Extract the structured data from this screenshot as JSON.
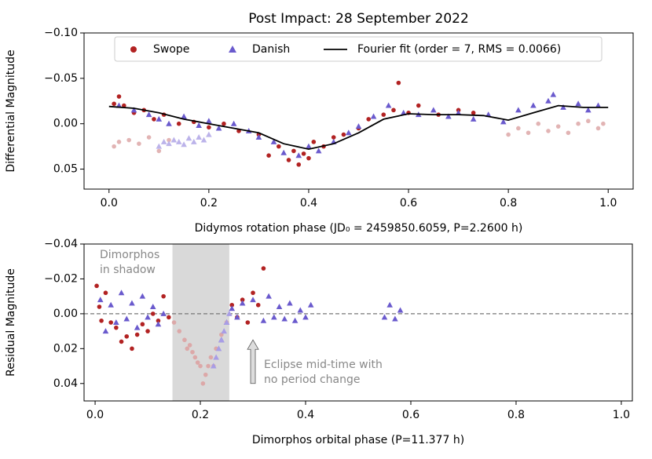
{
  "chart_data": [
    {
      "type": "scatter",
      "title": "Post Impact: 28 September 2022",
      "xlabel": "Didymos rotation phase (JD₀ = 2459850.6059,   P=2.2600 h)",
      "ylabel": "Differential Magnitude",
      "xlim": [
        -0.05,
        1.05
      ],
      "ylim": [
        -0.1,
        0.072
      ],
      "y_inverted": true,
      "xticks": [
        {
          "value": 0,
          "label": "0.0"
        },
        0.2,
        0.4,
        0.6,
        0.8,
        {
          "value": 1,
          "label": "1.0"
        }
      ],
      "yticks": [
        {
          "value": -0.1,
          "label": "−0.10"
        },
        {
          "value": -0.05,
          "label": "−0.05"
        },
        {
          "value": 0,
          "label": "0.00"
        },
        {
          "value": 0.05,
          "label": "0.05"
        }
      ],
      "legend": "upper center",
      "series": [
        {
          "name": "Swope",
          "color": "#b22222",
          "marker": "o",
          "x": [
            0.01,
            0.02,
            0.03,
            0.05,
            0.07,
            0.09,
            0.11,
            0.14,
            0.17,
            0.2,
            0.23,
            0.26,
            0.3,
            0.32,
            0.34,
            0.36,
            0.37,
            0.38,
            0.39,
            0.4,
            0.41,
            0.43,
            0.45,
            0.47,
            0.5,
            0.52,
            0.55,
            0.57,
            0.58,
            0.6,
            0.62,
            0.66,
            0.7,
            0.73
          ],
          "values": [
            -0.022,
            -0.03,
            -0.02,
            -0.012,
            -0.015,
            -0.005,
            -0.01,
            0.0,
            -0.002,
            0.004,
            0.0,
            0.008,
            0.012,
            0.035,
            0.025,
            0.04,
            0.03,
            0.045,
            0.033,
            0.038,
            0.02,
            0.025,
            0.015,
            0.012,
            0.005,
            -0.005,
            -0.01,
            -0.015,
            -0.045,
            -0.012,
            -0.02,
            -0.01,
            -0.015,
            -0.012
          ]
        },
        {
          "name": "Danish",
          "color": "#6a5acd",
          "marker": "^",
          "x": [
            0.02,
            0.05,
            0.08,
            0.1,
            0.12,
            0.15,
            0.18,
            0.2,
            0.22,
            0.25,
            0.28,
            0.3,
            0.33,
            0.35,
            0.38,
            0.4,
            0.42,
            0.45,
            0.48,
            0.5,
            0.53,
            0.56,
            0.59,
            0.62,
            0.65,
            0.68,
            0.7,
            0.73,
            0.76,
            0.79,
            0.82,
            0.85,
            0.88,
            0.89,
            0.91,
            0.94,
            0.96,
            0.98
          ],
          "values": [
            -0.02,
            -0.015,
            -0.01,
            -0.005,
            0.0,
            -0.008,
            0.002,
            -0.003,
            0.005,
            0.0,
            0.008,
            0.015,
            0.02,
            0.032,
            0.035,
            0.025,
            0.03,
            0.02,
            0.01,
            0.003,
            -0.008,
            -0.02,
            -0.012,
            -0.01,
            -0.015,
            -0.008,
            -0.012,
            -0.005,
            -0.01,
            -0.002,
            -0.015,
            -0.02,
            -0.025,
            -0.032,
            -0.018,
            -0.022,
            -0.015,
            -0.02
          ]
        },
        {
          "color": "#e2b4b4",
          "marker": "o",
          "x": [
            0.01,
            0.02,
            0.04,
            0.06,
            0.08,
            0.1,
            0.12,
            0.8,
            0.82,
            0.84,
            0.86,
            0.88,
            0.9,
            0.92,
            0.94,
            0.96,
            0.98,
            0.99
          ],
          "values": [
            0.025,
            0.02,
            0.018,
            0.022,
            0.015,
            0.03,
            0.018,
            0.012,
            0.005,
            0.01,
            0.0,
            0.008,
            0.003,
            0.01,
            0.0,
            -0.003,
            0.005,
            0.0
          ]
        },
        {
          "color": "#bcb3ea",
          "marker": "^",
          "x": [
            0.1,
            0.11,
            0.12,
            0.13,
            0.14,
            0.15,
            0.16,
            0.17,
            0.18,
            0.19,
            0.2
          ],
          "values": [
            0.025,
            0.02,
            0.022,
            0.018,
            0.02,
            0.023,
            0.016,
            0.02,
            0.015,
            0.018,
            0.012
          ]
        },
        {
          "name": "Fourier fit (order = 7, RMS = 0.0066)",
          "color": "#000000",
          "marker": "line",
          "x": [
            0,
            0.05,
            0.1,
            0.15,
            0.2,
            0.25,
            0.3,
            0.35,
            0.4,
            0.45,
            0.5,
            0.55,
            0.6,
            0.65,
            0.7,
            0.75,
            0.8,
            0.85,
            0.9,
            0.95,
            1
          ],
          "values": [
            -0.019,
            -0.017,
            -0.012,
            -0.005,
            0.0,
            0.005,
            0.01,
            0.022,
            0.028,
            0.022,
            0.01,
            -0.005,
            -0.011,
            -0.01,
            -0.01,
            -0.009,
            -0.004,
            -0.012,
            -0.02,
            -0.018,
            -0.018
          ]
        }
      ]
    },
    {
      "type": "scatter",
      "xlabel": "Dimorphos orbital phase (P=11.377 h)",
      "ylabel": "Residual Magnitude",
      "xlim": [
        -0.021,
        1.021
      ],
      "ylim": [
        -0.04,
        0.05
      ],
      "y_inverted": true,
      "xticks": [
        {
          "value": 0,
          "label": "0.0"
        },
        0.2,
        0.4,
        0.6,
        0.8,
        {
          "value": 1,
          "label": "1.0"
        }
      ],
      "yticks": [
        {
          "value": -0.04,
          "label": "−0.04"
        },
        {
          "value": -0.02,
          "label": "−0.02"
        },
        {
          "value": 0,
          "label": "0.00"
        },
        0.02,
        0.04
      ],
      "hline": 0,
      "shade": [
        0.147,
        0.255
      ],
      "annotations": [
        {
          "text": [
            "Dimorphos",
            "in shadow"
          ]
        },
        {
          "text": [
            "Eclipse mid-time with",
            "no period change"
          ],
          "arrow_x": 0.3,
          "arrow_y": [
            0.04,
            0.015
          ]
        }
      ],
      "series": [
        {
          "color": "#b22222",
          "marker": "o",
          "x": [
            0.003,
            0.008,
            0.012,
            0.02,
            0.03,
            0.04,
            0.05,
            0.06,
            0.07,
            0.08,
            0.09,
            0.1,
            0.11,
            0.12,
            0.13,
            0.14,
            0.26,
            0.27,
            0.28,
            0.29,
            0.3,
            0.31,
            0.32
          ],
          "values": [
            -0.016,
            -0.004,
            0.004,
            -0.012,
            0.005,
            0.008,
            0.016,
            0.013,
            0.02,
            0.012,
            0.006,
            0.01,
            0.0,
            0.004,
            -0.01,
            0.002,
            -0.005,
            0.002,
            -0.008,
            0.005,
            -0.012,
            -0.005,
            -0.026
          ]
        },
        {
          "color": "#6a5acd",
          "marker": "^",
          "x": [
            0.01,
            0.02,
            0.03,
            0.04,
            0.05,
            0.06,
            0.07,
            0.08,
            0.09,
            0.1,
            0.11,
            0.12,
            0.13,
            0.24,
            0.25,
            0.26,
            0.27,
            0.28,
            0.3,
            0.32,
            0.33,
            0.34,
            0.35,
            0.36,
            0.37,
            0.38,
            0.39,
            0.4,
            0.41,
            0.55,
            0.56,
            0.57,
            0.58
          ],
          "values": [
            -0.008,
            0.01,
            -0.005,
            0.005,
            -0.012,
            0.003,
            -0.006,
            0.008,
            -0.01,
            0.002,
            -0.004,
            0.006,
            0.0,
            0.015,
            0.005,
            -0.003,
            0.002,
            -0.006,
            -0.008,
            0.004,
            -0.01,
            0.002,
            -0.004,
            0.003,
            -0.006,
            0.004,
            -0.002,
            0.002,
            -0.005,
            0.002,
            -0.005,
            0.003,
            -0.002
          ]
        },
        {
          "color": "#dca8a8",
          "marker": "o",
          "x": [
            0.15,
            0.16,
            0.17,
            0.175,
            0.18,
            0.185,
            0.19,
            0.195,
            0.2,
            0.205,
            0.21,
            0.215,
            0.22,
            0.225,
            0.23,
            0.24,
            0.25
          ],
          "values": [
            0.005,
            0.01,
            0.015,
            0.02,
            0.018,
            0.022,
            0.025,
            0.028,
            0.03,
            0.04,
            0.035,
            0.03,
            0.025,
            0.03,
            0.02,
            0.012,
            0.005
          ]
        },
        {
          "color": "#a89de6",
          "marker": "^",
          "x": [
            0.225,
            0.23,
            0.235,
            0.24,
            0.245,
            0.25,
            0.255
          ],
          "values": [
            0.03,
            0.025,
            0.02,
            0.015,
            0.01,
            0.005,
            0.0
          ]
        }
      ]
    }
  ]
}
